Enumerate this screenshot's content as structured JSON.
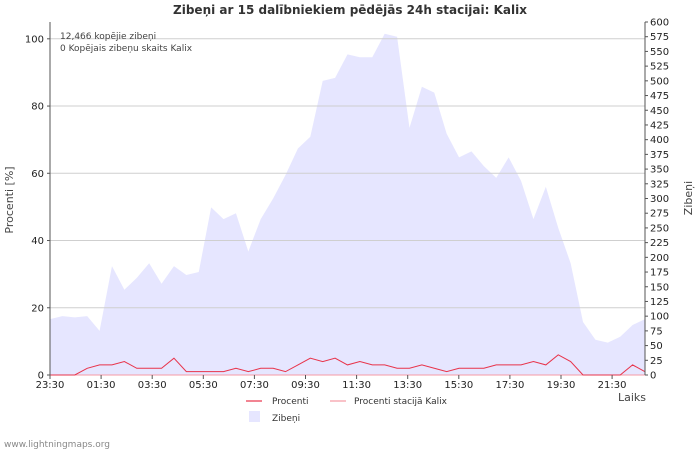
{
  "chart_data": {
    "type": "area",
    "title": "Zibeņi ar 15 dalībniekiem pēdējās 24h stacijai: Kalix",
    "xlabel": "Laiks",
    "ylabel_left": "Procenti   [%]",
    "ylabel_right": "Zibeņi",
    "ylim_left": [
      0,
      105
    ],
    "ylim_right": [
      0,
      600
    ],
    "yticks_left": [
      "0",
      "20",
      "40",
      "60",
      "80",
      "100"
    ],
    "yticks_right": [
      "0",
      "25",
      "50",
      "75",
      "100",
      "125",
      "150",
      "175",
      "200",
      "225",
      "250",
      "275",
      "300",
      "325",
      "350",
      "375",
      "400",
      "425",
      "450",
      "475",
      "500",
      "525",
      "550",
      "575",
      "600"
    ],
    "xticks": [
      "23:30",
      "01:30",
      "03:30",
      "05:30",
      "07:30",
      "09:30",
      "11:30",
      "13:30",
      "15:30",
      "17:30",
      "19:30",
      "21:30"
    ],
    "annotations": [
      "12,466 kopējie zibeņi",
      "0 Kopējais zibeņu skaits Kalix"
    ],
    "series": [
      {
        "name": "Zibeņi",
        "axis": "right",
        "color": "#e6e6ff",
        "values": [
          95,
          100,
          98,
          100,
          75,
          185,
          145,
          165,
          190,
          155,
          185,
          170,
          175,
          285,
          265,
          275,
          210,
          265,
          300,
          340,
          385,
          405,
          500,
          505,
          545,
          540,
          540,
          580,
          575,
          420,
          490,
          480,
          410,
          370,
          380,
          355,
          335,
          370,
          330,
          265,
          320,
          250,
          190,
          90,
          60,
          55,
          65,
          85,
          95
        ]
      },
      {
        "name": "Procenti",
        "axis": "left",
        "color": "#e8334a",
        "values": [
          0,
          0,
          0,
          2,
          3,
          3,
          4,
          2,
          2,
          2,
          5,
          1,
          1,
          1,
          1,
          2,
          1,
          2,
          2,
          1,
          3,
          5,
          4,
          5,
          3,
          4,
          3,
          3,
          2,
          2,
          3,
          2,
          1,
          2,
          2,
          2,
          3,
          3,
          3,
          4,
          3,
          6,
          4,
          0,
          0,
          0,
          0,
          3,
          1
        ]
      },
      {
        "name": "Procenti stacijā Kalix",
        "axis": "left",
        "color": "#f59aa4",
        "values": [
          0,
          0,
          0,
          0,
          0,
          0,
          0,
          0,
          0,
          0,
          0,
          0,
          0,
          0,
          0,
          0,
          0,
          0,
          0,
          0,
          0,
          0,
          0,
          0,
          0,
          0,
          0,
          0,
          0,
          0,
          0,
          0,
          0,
          0,
          0,
          0,
          0,
          0,
          0,
          0,
          0,
          0,
          0,
          0,
          0,
          0,
          0,
          0,
          0
        ]
      }
    ],
    "legend": [
      "Procenti",
      "Procenti stacijā Kalix",
      "Zibeņi"
    ]
  },
  "footer": "www.lightningmaps.org"
}
